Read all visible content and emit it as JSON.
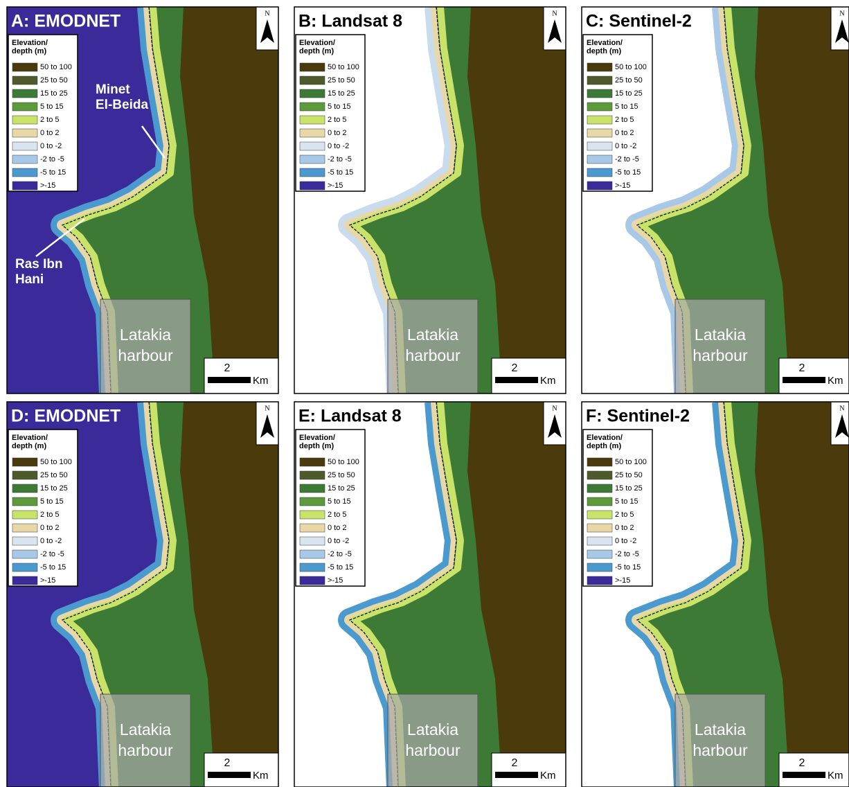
{
  "legend": {
    "title": "Elevation/\ndepth (m)",
    "entries": [
      {
        "label": "50 to 100",
        "color": "#4a3a0c"
      },
      {
        "label": "25 to 50",
        "color": "#4f5a2c"
      },
      {
        "label": "15 to 25",
        "color": "#3d7a36"
      },
      {
        "label": "5 to 15",
        "color": "#5c9a3c"
      },
      {
        "label": "2 to 5",
        "color": "#c8e26a"
      },
      {
        "label": "0 to 2",
        "color": "#e8d8a8"
      },
      {
        "label": "0 to -2",
        "color": "#d8e4f0"
      },
      {
        "label": "-2 to -5",
        "color": "#a8c8e8"
      },
      {
        "label": "-5 to 15",
        "color": "#4a9ad0"
      },
      {
        "label": ">-15",
        "color": "#3a2a9a"
      }
    ]
  },
  "harbour": "Latakia\nharbour",
  "scale": "2",
  "scale_unit": "Km",
  "north": "N",
  "panels": [
    {
      "title": "A: EMODNET",
      "sea_color": "#3a2a9a",
      "coast_color": "#4a9ad0",
      "annotations": [
        "Minet\nEl-Beida",
        "Ras Ibn\nHani"
      ]
    },
    {
      "title": "B: Landsat 8",
      "sea_color": "#ffffff",
      "coast_color": "#c8dced"
    },
    {
      "title": "C: Sentinel-2",
      "sea_color": "#ffffff",
      "coast_color": "#a8c8e8"
    },
    {
      "title": "D: EMODNET",
      "sea_color": "#3a2a9a",
      "coast_color": "#4a9ad0"
    },
    {
      "title": "E: Landsat 8",
      "sea_color": "#ffffff",
      "coast_color": "#4a9ad0"
    },
    {
      "title": "F: Sentinel-2",
      "sea_color": "#ffffff",
      "coast_color": "#4a9ad0"
    }
  ]
}
